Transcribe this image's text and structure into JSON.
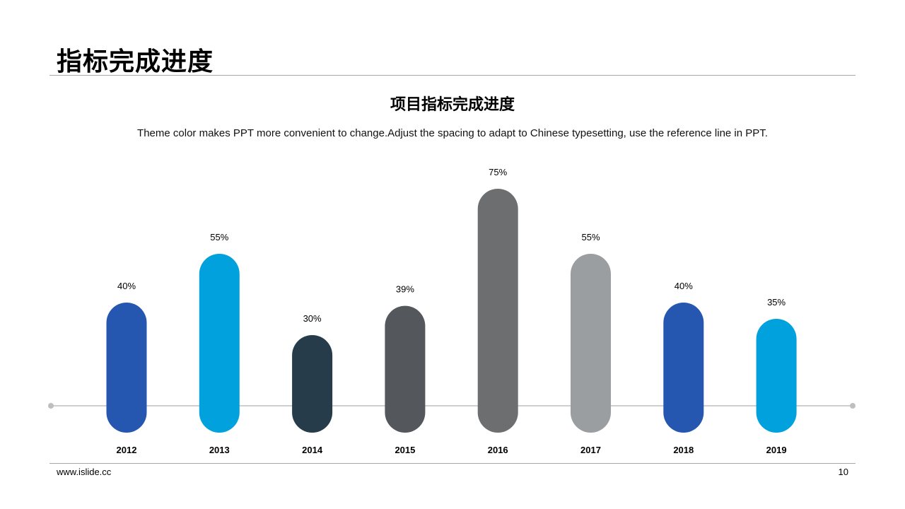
{
  "header": {
    "title": "指标完成进度"
  },
  "chart_data": {
    "type": "bar",
    "title": "项目指标完成进度",
    "subtitle": "Theme color makes PPT more convenient to change.Adjust the spacing to adapt to Chinese typesetting, use the reference line in PPT.",
    "categories": [
      "2012",
      "2013",
      "2014",
      "2015",
      "2016",
      "2017",
      "2018",
      "2019"
    ],
    "values": [
      40,
      55,
      30,
      39,
      75,
      55,
      40,
      35
    ],
    "data_labels": [
      "40%",
      "55%",
      "30%",
      "39%",
      "75%",
      "55%",
      "40%",
      "35%"
    ],
    "colors": [
      "#2557b0",
      "#00a1dd",
      "#263c4a",
      "#54575b",
      "#6d6e70",
      "#9a9ea1",
      "#2557b0",
      "#00a1dd"
    ],
    "xlabel": "",
    "ylabel": "",
    "ylim": [
      0,
      100
    ],
    "grid": false,
    "legend": "none",
    "bar_shape": "rounded-pill"
  },
  "footer": {
    "website": "www.islide.cc",
    "page_number": "10"
  }
}
